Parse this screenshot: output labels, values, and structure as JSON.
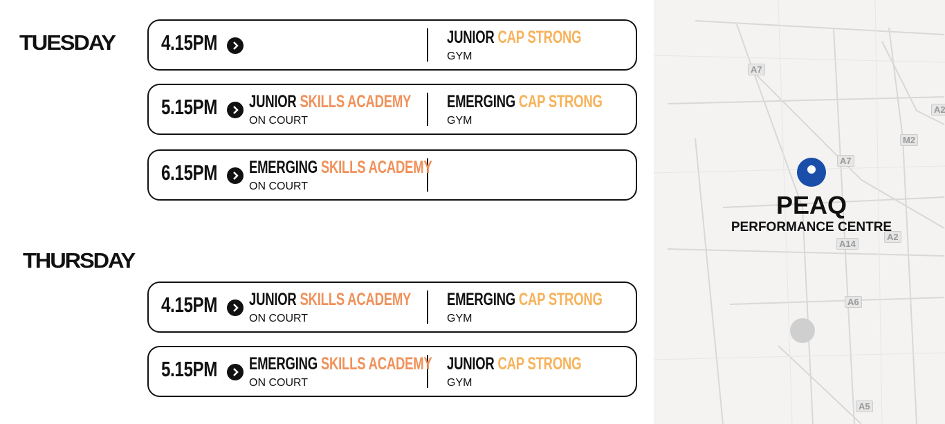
{
  "schedule": [
    {
      "day": "TUESDAY",
      "sessions": [
        {
          "time": "4.15PM",
          "right": {
            "level": "JUNIOR",
            "program": "CAP STRONG",
            "location": "GYM"
          }
        },
        {
          "time": "5.15PM",
          "left": {
            "level": "JUNIOR",
            "program": "SKILLS ACADEMY",
            "location": "ON COURT"
          },
          "right": {
            "level": "EMERGING",
            "program": "CAP STRONG",
            "location": "GYM"
          }
        },
        {
          "time": "6.15PM",
          "left": {
            "level": "EMERGING",
            "program": "SKILLS ACADEMY",
            "location": "ON COURT"
          }
        }
      ]
    },
    {
      "day": "THURSDAY",
      "sessions": [
        {
          "time": "4.15PM",
          "left": {
            "level": "JUNIOR",
            "program": "SKILLS ACADEMY",
            "location": "ON COURT"
          },
          "right": {
            "level": "EMERGING",
            "program": "CAP STRONG",
            "location": "GYM"
          }
        },
        {
          "time": "5.15PM",
          "left": {
            "level": "EMERGING",
            "program": "SKILLS ACADEMY",
            "location": "ON COURT"
          },
          "right": {
            "level": "JUNIOR",
            "program": "CAP STRONG",
            "location": "GYM"
          }
        }
      ]
    }
  ],
  "map": {
    "title": "PEAQ",
    "subtitle": "PERFORMANCE CENTRE",
    "road_labels": [
      "A7",
      "A2",
      "M2",
      "A7",
      "A14",
      "A2",
      "A6",
      "A5"
    ]
  }
}
